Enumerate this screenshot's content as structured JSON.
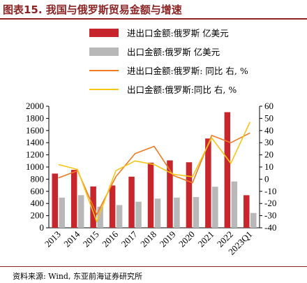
{
  "header": {
    "title": "图表15.  我国与俄罗斯贸易金额与增速"
  },
  "legend": [
    {
      "label": "进出口金额:俄罗斯 亿美元",
      "kind": "bar",
      "color": "#c8262d"
    },
    {
      "label": "出口金额:俄罗斯 亿美元",
      "kind": "bar",
      "color": "#b8b8b8"
    },
    {
      "label": "进出口金额:俄罗斯: 同比 右, %",
      "kind": "line",
      "color": "#f07a22"
    },
    {
      "label": "出口金额:俄罗斯:同比 右, %",
      "kind": "line",
      "color": "#f5c518"
    }
  ],
  "footer": {
    "source": "资料来源: Wind, 东亚前海证券研究所"
  },
  "chart_data": {
    "type": "bar",
    "categories": [
      "2013",
      "2014",
      "2015",
      "2016",
      "2017",
      "2018",
      "2019",
      "2020",
      "2021",
      "2022",
      "2023Q1"
    ],
    "series": [
      {
        "name": "进出口金额:俄罗斯 亿美元",
        "kind": "bar",
        "axis": "left",
        "color": "#c8262d",
        "values": [
          892,
          953,
          680,
          696,
          841,
          1071,
          1109,
          1078,
          1469,
          1902,
          536
        ]
      },
      {
        "name": "出口金额:俄罗斯 亿美元",
        "kind": "bar",
        "axis": "left",
        "color": "#b8b8b8",
        "values": [
          496,
          537,
          348,
          374,
          429,
          480,
          497,
          506,
          676,
          762,
          244
        ]
      },
      {
        "name": "进出口金额:俄罗斯: 同比 右, %",
        "kind": "line",
        "axis": "right",
        "color": "#f07a22",
        "values": [
          1,
          7,
          -29,
          2,
          21,
          27,
          3,
          -3,
          36,
          30,
          38
        ]
      },
      {
        "name": "出口金额:俄罗斯:同比 右, %",
        "kind": "line",
        "axis": "right",
        "color": "#f5c518",
        "values": [
          12,
          8,
          -35,
          7,
          15,
          12,
          4,
          2,
          34,
          13,
          47
        ]
      }
    ],
    "ylim_left": [
      0,
      2000
    ],
    "yticks_left": [
      0,
      200,
      400,
      600,
      800,
      1000,
      1200,
      1400,
      1600,
      1800,
      2000
    ],
    "ylim_right": [
      -40,
      60
    ],
    "yticks_right": [
      -40,
      -30,
      -20,
      -10,
      0,
      10,
      20,
      30,
      40,
      50,
      60
    ],
    "grid": false
  }
}
